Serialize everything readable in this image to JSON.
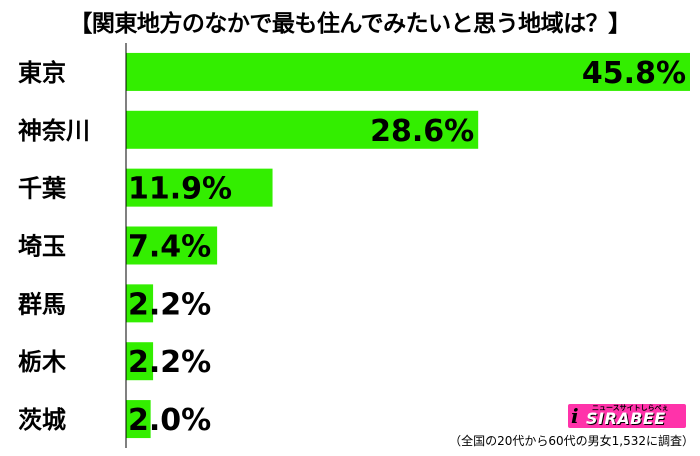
{
  "chart_data": {
    "type": "bar",
    "orientation": "horizontal",
    "title": "【関東地方のなかで最も住んでみたいと思う地域は？】",
    "categories": [
      "東京",
      "神奈川",
      "千葉",
      "埼玉",
      "群馬",
      "栃木",
      "茨城"
    ],
    "values": [
      45.8,
      28.6,
      11.9,
      7.4,
      2.2,
      2.2,
      2.0
    ],
    "value_labels": [
      "45.8%",
      "28.6%",
      "11.9%",
      "7.4%",
      "2.2%",
      "2.2%",
      "2.0%"
    ],
    "unit": "%",
    "xlim": [
      0,
      45.8
    ],
    "grid": false,
    "legend": "none",
    "bar_color": "#33ee00",
    "axis_color": "#000000"
  },
  "logo": {
    "mark": "i",
    "tagline": "ニュースサイトしらべぇ",
    "text": "SIRABEE",
    "color": "#ff33aa"
  },
  "footnote": "（全国の20代から60代の男女1,532に調査）"
}
